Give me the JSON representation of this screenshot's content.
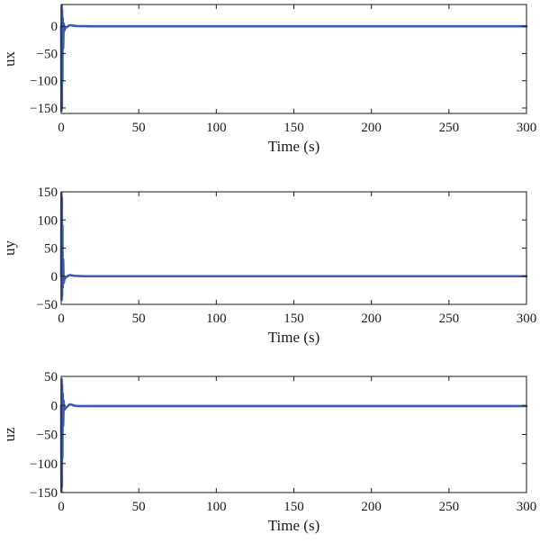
{
  "chart_data": [
    {
      "type": "line",
      "title": "",
      "xlabel": "Time (s)",
      "ylabel": "ux",
      "xlim": [
        0,
        300
      ],
      "ylim": [
        -160,
        40
      ],
      "xticks": [
        0,
        50,
        100,
        150,
        200,
        250,
        300
      ],
      "yticks": [
        -150,
        -100,
        -50,
        0
      ],
      "grid": false,
      "series": [
        {
          "color": "#3a5bb5",
          "x": [
            0,
            0.15,
            0.3,
            0.45,
            0.6,
            0.8,
            1.0,
            1.3,
            1.6,
            2,
            2.5,
            3,
            4,
            5,
            6,
            8,
            10,
            15,
            20,
            50,
            100,
            150,
            200,
            250,
            300
          ],
          "y": [
            0,
            -155,
            38,
            -150,
            30,
            -100,
            15,
            -40,
            5,
            -8,
            -4,
            -2,
            -1,
            1.5,
            2,
            1,
            0.5,
            0.2,
            0,
            0,
            0,
            0,
            0,
            0,
            0
          ]
        }
      ]
    },
    {
      "type": "line",
      "title": "",
      "xlabel": "Time (s)",
      "ylabel": "uy",
      "xlim": [
        0,
        300
      ],
      "ylim": [
        -50,
        150
      ],
      "xticks": [
        0,
        50,
        100,
        150,
        200,
        250,
        300
      ],
      "yticks": [
        -50,
        0,
        50,
        100,
        150
      ],
      "grid": false,
      "series": [
        {
          "color": "#3a5bb5",
          "x": [
            0,
            0.15,
            0.3,
            0.45,
            0.6,
            0.8,
            1.0,
            1.3,
            1.6,
            2,
            2.5,
            3,
            4,
            5,
            6,
            8,
            10,
            15,
            20,
            50,
            100,
            150,
            200,
            250,
            300
          ],
          "y": [
            0,
            148,
            -42,
            140,
            -35,
            90,
            -20,
            30,
            -12,
            -6,
            -4,
            -2,
            0,
            1.5,
            2,
            1,
            0.5,
            0,
            0,
            0,
            0,
            0,
            0,
            0,
            0
          ]
        }
      ]
    },
    {
      "type": "line",
      "title": "",
      "xlabel": "Time (s)",
      "ylabel": "uz",
      "xlim": [
        0,
        300
      ],
      "ylim": [
        -150,
        50
      ],
      "xticks": [
        0,
        50,
        100,
        150,
        200,
        250,
        300
      ],
      "yticks": [
        -150,
        -100,
        -50,
        0,
        50
      ],
      "grid": false,
      "series": [
        {
          "color": "#3a5bb5",
          "x": [
            0,
            0.15,
            0.3,
            0.45,
            0.6,
            0.8,
            1.0,
            1.3,
            1.6,
            2,
            2.5,
            3,
            4,
            5,
            6,
            8,
            10,
            15,
            20,
            50,
            100,
            150,
            200,
            250,
            300
          ],
          "y": [
            0,
            -148,
            45,
            -140,
            35,
            -90,
            20,
            -35,
            8,
            -8,
            -6,
            -4,
            -2,
            1,
            2,
            0,
            -1,
            -1,
            -1,
            -1,
            -1,
            -1,
            -1,
            -1,
            -1
          ]
        }
      ]
    }
  ]
}
